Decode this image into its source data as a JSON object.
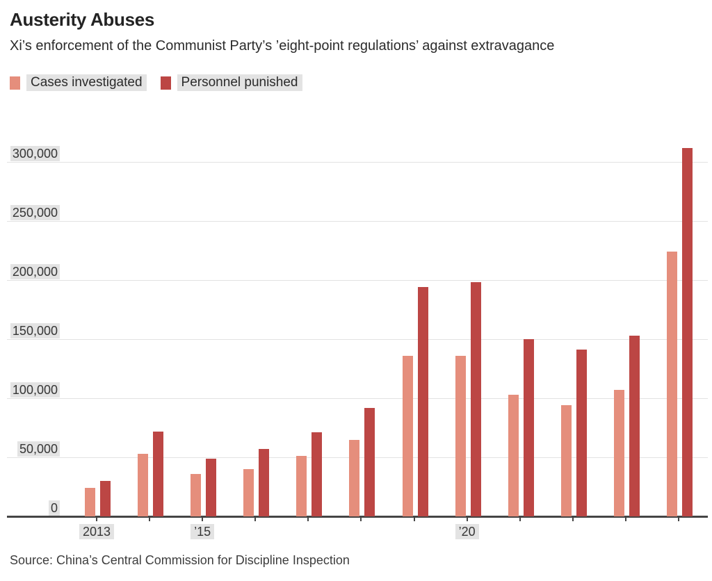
{
  "header": {
    "title": "Austerity Abuses",
    "subtitle": "Xi’s enforcement of the Communist Party’s ’eight-point regulations’ against extravagance"
  },
  "legend": {
    "items": [
      {
        "label": "Cases investigated",
        "color": "#e58e7c"
      },
      {
        "label": "Personnel punished",
        "color": "#bc4644"
      }
    ]
  },
  "source": "Source: China’s Central Commission for Discipline Inspection",
  "colors": {
    "cases": "#e58e7c",
    "punished": "#bc4644",
    "gridline": "#e2e2e2",
    "axis": "#454545",
    "label_background": "#e3e3e3"
  },
  "chart_data": {
    "type": "bar",
    "title": "Austerity Abuses",
    "subtitle": "Xi’s enforcement of the Communist Party’s ’eight-point regulations’ against extravagance",
    "categories": [
      "2013",
      "2014",
      "2015",
      "2016",
      "2017",
      "2018",
      "2019",
      "2020",
      "2021",
      "2022",
      "2023",
      "2024"
    ],
    "series": [
      {
        "name": "Cases investigated",
        "color": "#e58e7c",
        "values": [
          24000,
          53000,
          36000,
          40000,
          51000,
          65000,
          136000,
          136000,
          103000,
          94000,
          107000,
          224000
        ]
      },
      {
        "name": "Personnel punished",
        "color": "#bc4644",
        "values": [
          30000,
          72000,
          49000,
          57000,
          71000,
          92000,
          194000,
          198000,
          150000,
          141000,
          153000,
          312000
        ]
      }
    ],
    "ylim": [
      0,
      300000
    ],
    "ytick_step": 50000,
    "ytick_labels": [
      "0",
      "50,000",
      "100,000",
      "150,000",
      "200,000",
      "250,000",
      "300,000"
    ],
    "xtick_labels": [
      {
        "index": 0,
        "label": "2013"
      },
      {
        "index": 2,
        "label": "’15"
      },
      {
        "index": 7,
        "label": "’20"
      }
    ],
    "grid": "horizontal",
    "legend_position": "top-left",
    "source": "Source: China’s Central Commission for Discipline Inspection"
  }
}
